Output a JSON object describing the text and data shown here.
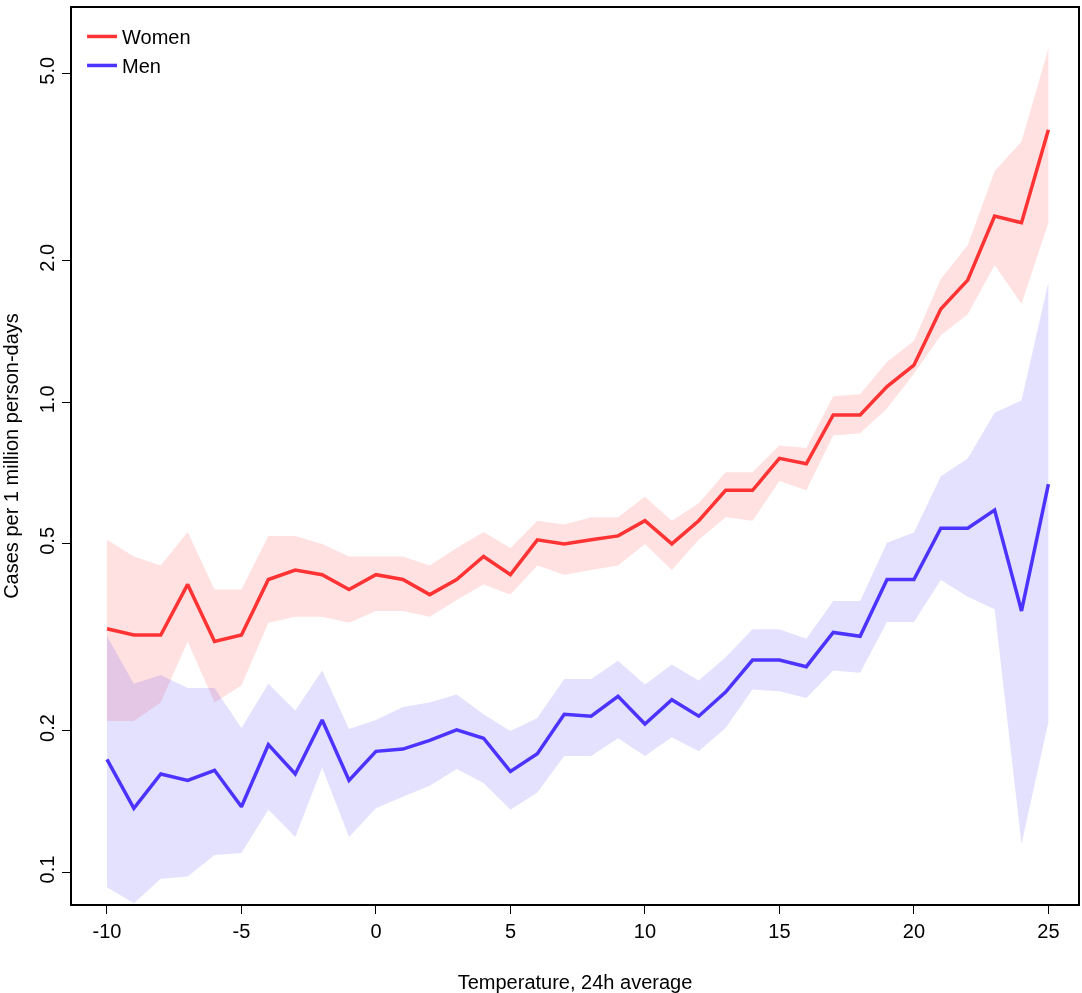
{
  "chart_data": {
    "type": "line",
    "xlabel": "Temperature, 24h average",
    "ylabel": "Cases per 1 million person-days",
    "x": [
      -10,
      -9,
      -8,
      -7,
      -6,
      -5,
      -4,
      -3,
      -2,
      -1,
      0,
      1,
      2,
      3,
      4,
      5,
      6,
      7,
      8,
      9,
      10,
      11,
      12,
      13,
      14,
      15,
      16,
      17,
      18,
      19,
      20,
      21,
      22,
      23,
      24,
      25
    ],
    "series": [
      {
        "name": "Women",
        "color": "#ff3333",
        "values": [
          0.33,
          0.32,
          0.32,
          0.41,
          0.31,
          0.32,
          0.42,
          0.44,
          0.43,
          0.4,
          0.43,
          0.42,
          0.39,
          0.42,
          0.47,
          0.43,
          0.51,
          0.5,
          0.51,
          0.52,
          0.56,
          0.5,
          0.56,
          0.65,
          0.65,
          0.76,
          0.74,
          0.94,
          0.94,
          1.08,
          1.2,
          1.58,
          1.82,
          2.49,
          2.41,
          3.8
        ],
        "lower": [
          0.21,
          0.21,
          0.23,
          0.31,
          0.23,
          0.25,
          0.34,
          0.35,
          0.35,
          0.34,
          0.36,
          0.36,
          0.35,
          0.38,
          0.41,
          0.39,
          0.45,
          0.43,
          0.44,
          0.45,
          0.5,
          0.44,
          0.51,
          0.57,
          0.56,
          0.68,
          0.65,
          0.85,
          0.86,
          0.97,
          1.15,
          1.39,
          1.54,
          1.96,
          1.62,
          2.41
        ],
        "upper": [
          0.51,
          0.47,
          0.45,
          0.53,
          0.4,
          0.4,
          0.52,
          0.52,
          0.5,
          0.47,
          0.47,
          0.47,
          0.45,
          0.49,
          0.53,
          0.49,
          0.56,
          0.55,
          0.57,
          0.57,
          0.63,
          0.56,
          0.61,
          0.71,
          0.71,
          0.81,
          0.8,
          1.03,
          1.04,
          1.22,
          1.35,
          1.83,
          2.16,
          3.1,
          3.59,
          5.66
        ]
      },
      {
        "name": "Men",
        "color": "#4d33ff",
        "values": [
          0.174,
          0.137,
          0.162,
          0.157,
          0.165,
          0.138,
          0.187,
          0.162,
          0.211,
          0.157,
          0.181,
          0.183,
          0.191,
          0.201,
          0.193,
          0.164,
          0.179,
          0.217,
          0.215,
          0.237,
          0.207,
          0.233,
          0.215,
          0.242,
          0.283,
          0.283,
          0.274,
          0.324,
          0.318,
          0.42,
          0.42,
          0.54,
          0.54,
          0.59,
          0.36,
          0.67
        ],
        "lower": [
          0.093,
          0.086,
          0.097,
          0.098,
          0.109,
          0.11,
          0.136,
          0.119,
          0.167,
          0.119,
          0.137,
          0.145,
          0.153,
          0.166,
          0.155,
          0.136,
          0.148,
          0.177,
          0.177,
          0.193,
          0.177,
          0.194,
          0.181,
          0.203,
          0.245,
          0.243,
          0.235,
          0.269,
          0.266,
          0.341,
          0.341,
          0.419,
          0.386,
          0.363,
          0.115,
          0.209
        ],
        "upper": [
          0.318,
          0.252,
          0.263,
          0.247,
          0.247,
          0.203,
          0.252,
          0.221,
          0.269,
          0.202,
          0.211,
          0.225,
          0.23,
          0.239,
          0.217,
          0.2,
          0.213,
          0.258,
          0.258,
          0.282,
          0.251,
          0.277,
          0.256,
          0.287,
          0.329,
          0.329,
          0.314,
          0.378,
          0.378,
          0.503,
          0.529,
          0.696,
          0.76,
          0.95,
          1.01,
          1.8
        ]
      }
    ],
    "log": "y",
    "xlim": [
      -11.3,
      26.1
    ],
    "ylim": [
      0.0857,
      6.9
    ],
    "xticks": [
      -10,
      -5,
      0,
      5,
      10,
      15,
      20,
      25
    ],
    "yticks": [
      0.1,
      0.2,
      0.5,
      {
        "value": 1,
        "label": "1.0"
      },
      {
        "value": 2,
        "label": "2.0"
      },
      {
        "value": 5,
        "label": "5.0"
      }
    ],
    "legend": "top left",
    "marker": "none",
    "line_style": "solid"
  }
}
